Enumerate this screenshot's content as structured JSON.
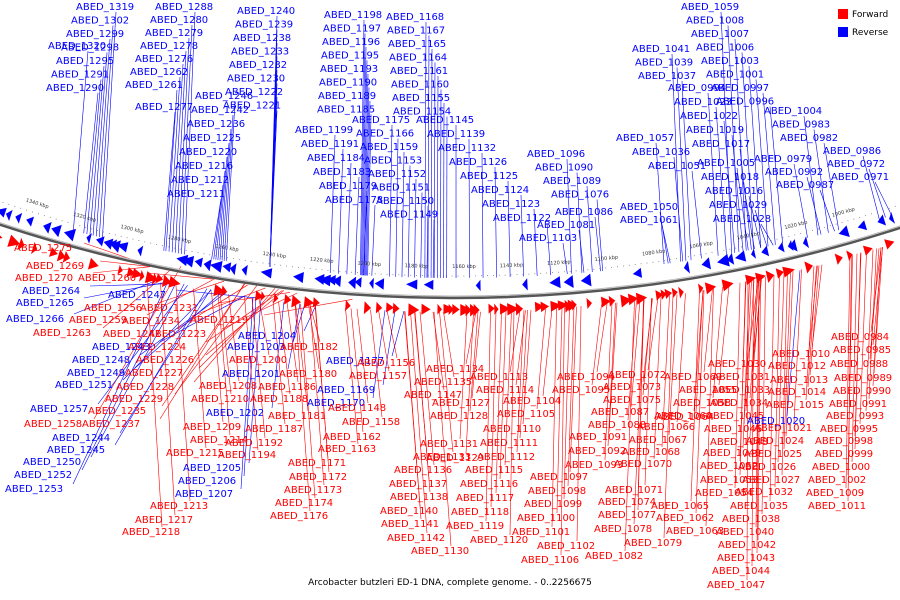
{
  "legend": {
    "forward": {
      "label": "Forward",
      "color": "#ff0000"
    },
    "reverse": {
      "label": "Reverse",
      "color": "#0000ff"
    }
  },
  "caption": "Arcobacter butzleri ED-1 DNA, complete genome. - 0..2256675",
  "scale": {
    "labels": [
      "1340 kbp",
      "1320 kbp",
      "1300 kbp",
      "1280 kbp",
      "1260 kbp",
      "1240 kbp",
      "1220 kbp",
      "1200 kbp",
      "1180 kbp",
      "1160 kbp",
      "1140 kbp",
      "1120 kbp",
      "1100 kbp",
      "1080 kbp",
      "1060 kbp",
      "1040 kbp",
      "1020 kbp",
      "1000 kbp"
    ]
  },
  "genes": {
    "reverse_top": [
      "ABED_1319",
      "ABED_1302",
      "ABED_1299",
      "ABED_1298",
      "ABED_1295",
      "ABED_1291",
      "ABED_1290",
      "ABED_1320",
      "ABED_1288",
      "ABED_1280",
      "ABED_1279",
      "ABED_1278",
      "ABED_1276",
      "ABED_1262",
      "ABED_1261",
      "ABED_1277",
      "ABED_1240",
      "ABED_1239",
      "ABED_1238",
      "ABED_1233",
      "ABED_1232",
      "ABED_1230",
      "ABED_1222",
      "ABED_1221",
      "ABED_1246",
      "ABED_1242",
      "ABED_1236",
      "ABED_1225",
      "ABED_1220",
      "ABED_1216",
      "ABED_1212",
      "ABED_1211",
      "ABED_1198",
      "ABED_1197",
      "ABED_1196",
      "ABED_1195",
      "ABED_1193",
      "ABED_1190",
      "ABED_1189",
      "ABED_1185",
      "ABED_1199",
      "ABED_1191",
      "ABED_1184",
      "ABED_1183",
      "ABED_1179",
      "ABED_1178",
      "ABED_1168",
      "ABED_1167",
      "ABED_1165",
      "ABED_1164",
      "ABED_1161",
      "ABED_1160",
      "ABED_1155",
      "ABED_1154",
      "ABED_1175",
      "ABED_1166",
      "ABED_1159",
      "ABED_1153",
      "ABED_1152",
      "ABED_1151",
      "ABED_1150",
      "ABED_1149",
      "ABED_1145",
      "ABED_1139",
      "ABED_1132",
      "ABED_1126",
      "ABED_1125",
      "ABED_1124",
      "ABED_1123",
      "ABED_1122",
      "ABED_1096",
      "ABED_1090",
      "ABED_1089",
      "ABED_1076",
      "ABED_1086",
      "ABED_1081",
      "ABED_1103",
      "ABED_1041",
      "ABED_1039",
      "ABED_1037",
      "ABED_1057",
      "ABED_1036",
      "ABED_1051",
      "ABED_1050",
      "ABED_1061",
      "ABED_1059",
      "ABED_1008",
      "ABED_1007",
      "ABED_1006",
      "ABED_1003",
      "ABED_1001",
      "ABED_0997",
      "ABED_0996",
      "ABED_0994",
      "ABED_1023",
      "ABED_1022",
      "ABED_1019",
      "ABED_1017",
      "ABED_1005",
      "ABED_1018",
      "ABED_1016",
      "ABED_1029",
      "ABED_1028",
      "ABED_1004",
      "ABED_0983",
      "ABED_0982",
      "ABED_0979",
      "ABED_0992",
      "ABED_0987",
      "ABED_0986",
      "ABED_0972",
      "ABED_0971",
      "ABED_0973"
    ],
    "forward_left": [
      "ABED_1275",
      "ABED_1269",
      "ABED_1270",
      "ABED_1260",
      "ABED_1256",
      "ABED_1259",
      "ABED_1263",
      "ABED_1241",
      "ABED_1231",
      "ABED_1234",
      "ABED_1223",
      "ABED_1224",
      "ABED_1226",
      "ABED_1227",
      "ABED_1228",
      "ABED_1229",
      "ABED_1235",
      "ABED_1237",
      "ABED_1258",
      "ABED_1219"
    ],
    "reverse_left": [
      "ABED_1264",
      "ABED_1265",
      "ABED_1266",
      "ABED_1247",
      "ABED_1243",
      "ABED_1248",
      "ABED_1249",
      "ABED_1251",
      "ABED_1257",
      "ABED_1244",
      "ABED_1245",
      "ABED_1250",
      "ABED_1252",
      "ABED_1253"
    ],
    "reverse_mid": [
      "ABED_1204",
      "ABED_1203",
      "ABED_1201",
      "ABED_1202",
      "ABED_1205",
      "ABED_1206",
      "ABED_1207",
      "ABED_1177",
      "ABED_1169",
      "ABED_1170"
    ],
    "forward_bottom": [
      "ABED_1200",
      "ABED_1208",
      "ABED_1210",
      "ABED_1209",
      "ABED_1214",
      "ABED_1215",
      "ABED_1192",
      "ABED_1194",
      "ABED_1213",
      "ABED_1217",
      "ABED_1218",
      "ABED_1182",
      "ABED_1180",
      "ABED_1186",
      "ABED_1188",
      "ABED_1187",
      "ABED_1181",
      "ABED_1171",
      "ABED_1172",
      "ABED_1173",
      "ABED_1174",
      "ABED_1176",
      "ABED_1156",
      "ABED_1157",
      "ABED_1148",
      "ABED_1158",
      "ABED_1162",
      "ABED_1163",
      "ABED_1134",
      "ABED_1135",
      "ABED_1147",
      "ABED_1127",
      "ABED_1128",
      "ABED_1129",
      "ABED_1131",
      "ABED_1133",
      "ABED_1136",
      "ABED_1137",
      "ABED_1138",
      "ABED_1140",
      "ABED_1141",
      "ABED_1142",
      "ABED_1130",
      "ABED_1113",
      "ABED_1114",
      "ABED_1104",
      "ABED_1105",
      "ABED_1110",
      "ABED_1111",
      "ABED_1112",
      "ABED_1115",
      "ABED_1116",
      "ABED_1117",
      "ABED_1118",
      "ABED_1119",
      "ABED_1120",
      "ABED_1106",
      "ABED_1094",
      "ABED_1095",
      "ABED_1087",
      "ABED_1088",
      "ABED_1091",
      "ABED_1092",
      "ABED_1093",
      "ABED_1097",
      "ABED_1098",
      "ABED_1099",
      "ABED_1100",
      "ABED_1101",
      "ABED_1102",
      "ABED_1072",
      "ABED_1073",
      "ABED_1075",
      "ABED_1066",
      "ABED_1067",
      "ABED_1068",
      "ABED_1070",
      "ABED_1071",
      "ABED_1074",
      "ABED_1077",
      "ABED_1078",
      "ABED_1082",
      "ABED_1079",
      "ABED_1069",
      "ABED_1055",
      "ABED_1058",
      "ABED_1060",
      "ABED_1065",
      "ABED_1062",
      "ABED_1063",
      "ABED_1064",
      "ABED_1030",
      "ABED_1031",
      "ABED_1033",
      "ABED_1034",
      "ABED_1045",
      "ABED_1046",
      "ABED_1048",
      "ABED_1049",
      "ABED_1052",
      "ABED_1053",
      "ABED_1054",
      "ABED_1032",
      "ABED_1035",
      "ABED_1038",
      "ABED_1040",
      "ABED_1042",
      "ABED_1043",
      "ABED_1044",
      "ABED_1047",
      "ABED_1010",
      "ABED_1012",
      "ABED_1013",
      "ABED_1014",
      "ABED_1015",
      "ABED_1021",
      "ABED_1024",
      "ABED_1025",
      "ABED_1026",
      "ABED_1027",
      "ABED_0984",
      "ABED_0985",
      "ABED_0988",
      "ABED_0989",
      "ABED_0990",
      "ABED_0991",
      "ABED_0993",
      "ABED_0995",
      "ABED_0998",
      "ABED_0999",
      "ABED_1000",
      "ABED_1002",
      "ABED_1009",
      "ABED_1011"
    ],
    "reverse_bottom": [
      "ABED_1020"
    ]
  }
}
